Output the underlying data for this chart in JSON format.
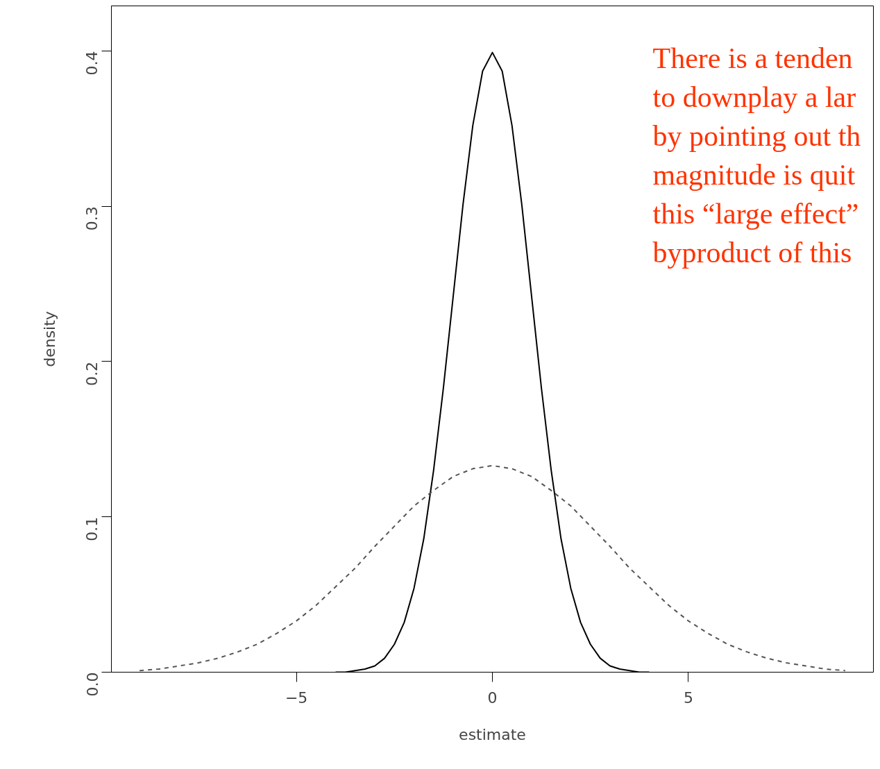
{
  "chart_data": {
    "type": "line",
    "xlabel": "estimate",
    "ylabel": "density",
    "xlim": [
      -9.72,
      9.72
    ],
    "ylim": [
      0,
      0.429
    ],
    "xticks": [
      {
        "value": -5,
        "label": "−5"
      },
      0,
      5
    ],
    "yticks": [
      {
        "value": 0,
        "label": "0.0"
      },
      0.1,
      0.2,
      0.3,
      0.4
    ],
    "grid": false,
    "marker": "none",
    "series": [
      {
        "color": "#000000",
        "line_style": "solid",
        "x": [
          -4,
          -3.75,
          -3.5,
          -3.25,
          -3,
          -2.75,
          -2.5,
          -2.25,
          -2,
          -1.75,
          -1.5,
          -1.25,
          -1,
          -0.75,
          -0.5,
          -0.25,
          0,
          0.25,
          0.5,
          0.75,
          1,
          1.25,
          1.5,
          1.75,
          2,
          2.25,
          2.5,
          2.75,
          3,
          3.25,
          3.5,
          3.75,
          4
        ],
        "values": [
          0.0,
          0.0,
          0.001,
          0.002,
          0.004,
          0.009,
          0.018,
          0.032,
          0.054,
          0.086,
          0.13,
          0.183,
          0.242,
          0.301,
          0.352,
          0.387,
          0.399,
          0.387,
          0.352,
          0.301,
          0.242,
          0.183,
          0.13,
          0.086,
          0.054,
          0.032,
          0.018,
          0.009,
          0.004,
          0.002,
          0.001,
          0.0,
          0.0
        ]
      },
      {
        "color": "#555555",
        "line_style": "dashed",
        "x": [
          -9,
          -8.5,
          -8,
          -7.5,
          -7,
          -6.5,
          -6,
          -5.5,
          -5,
          -4.5,
          -4,
          -3.5,
          -3,
          -2.5,
          -2,
          -1.5,
          -1,
          -0.5,
          0,
          0.5,
          1,
          1.5,
          2,
          2.5,
          3,
          3.5,
          4,
          4.5,
          5,
          5.5,
          6,
          6.5,
          7,
          7.5,
          8,
          8.5,
          9
        ],
        "values": [
          0.001,
          0.002,
          0.004,
          0.006,
          0.009,
          0.013,
          0.018,
          0.025,
          0.033,
          0.043,
          0.055,
          0.067,
          0.081,
          0.094,
          0.107,
          0.117,
          0.126,
          0.131,
          0.133,
          0.131,
          0.126,
          0.117,
          0.107,
          0.094,
          0.081,
          0.067,
          0.055,
          0.043,
          0.033,
          0.025,
          0.018,
          0.013,
          0.009,
          0.006,
          0.004,
          0.002,
          0.001
        ]
      }
    ],
    "annotations": [
      "There is a tenden",
      "to downplay a lar",
      "by pointing out th",
      "magnitude is quit",
      "this “large effect”",
      "byproduct of this"
    ]
  }
}
